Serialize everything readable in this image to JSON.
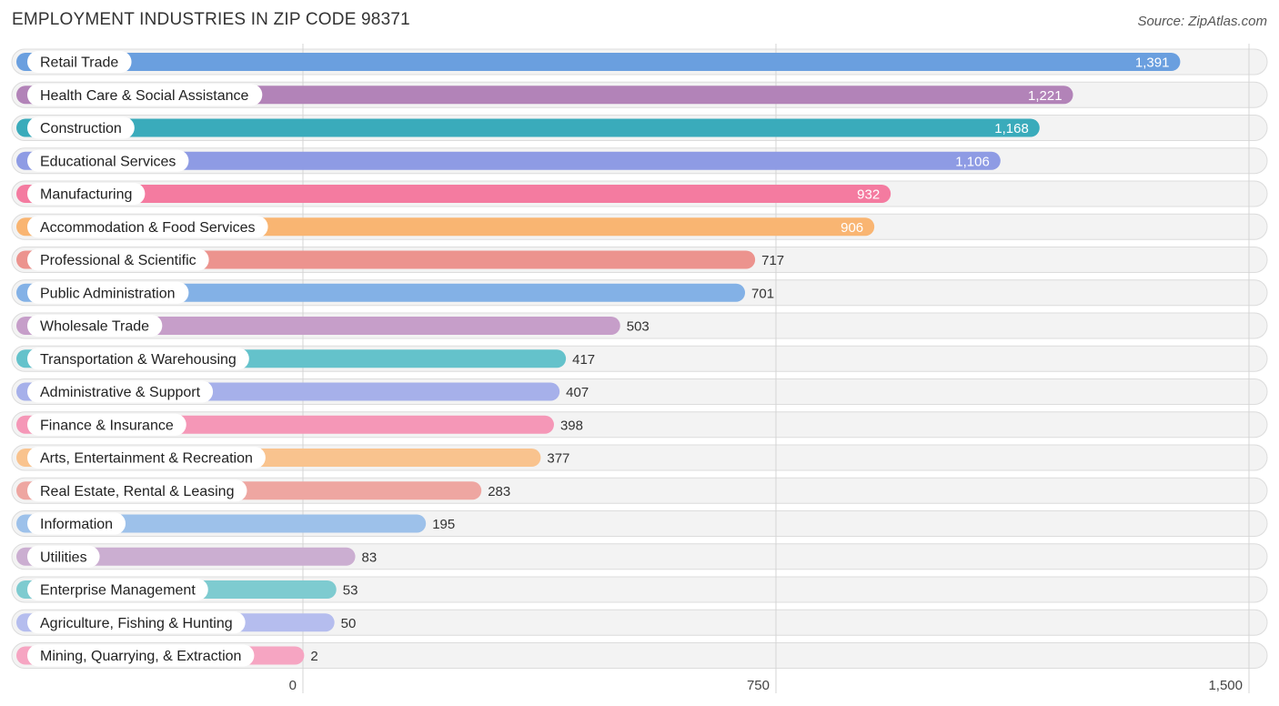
{
  "chart_data": {
    "type": "bar",
    "orientation": "horizontal",
    "title": "EMPLOYMENT INDUSTRIES IN ZIP CODE 98371",
    "source": "Source: ZipAtlas.com",
    "xlabel": "",
    "ylabel": "",
    "xlim": [
      0,
      1500
    ],
    "ticks": [
      0,
      750,
      1500
    ],
    "tick_labels": [
      "0",
      "750",
      "1,500"
    ],
    "categories": [
      "Retail Trade",
      "Health Care & Social Assistance",
      "Construction",
      "Educational Services",
      "Manufacturing",
      "Accommodation & Food Services",
      "Professional & Scientific",
      "Public Administration",
      "Wholesale Trade",
      "Transportation & Warehousing",
      "Administrative & Support",
      "Finance & Insurance",
      "Arts, Entertainment & Recreation",
      "Real Estate, Rental & Leasing",
      "Information",
      "Utilities",
      "Enterprise Management",
      "Agriculture, Fishing & Hunting",
      "Mining, Quarrying, & Extraction"
    ],
    "values": [
      1391,
      1221,
      1168,
      1106,
      932,
      906,
      717,
      701,
      503,
      417,
      407,
      398,
      377,
      283,
      195,
      83,
      53,
      50,
      2
    ],
    "value_labels": [
      "1,391",
      "1,221",
      "1,168",
      "1,106",
      "932",
      "906",
      "717",
      "701",
      "503",
      "417",
      "407",
      "398",
      "377",
      "283",
      "195",
      "83",
      "53",
      "50",
      "2"
    ],
    "colors": [
      "#6a9fdf",
      "#b283b8",
      "#3aabbb",
      "#8e9be4",
      "#f47ba0",
      "#f9b572",
      "#ec938e",
      "#83b1e6",
      "#c69ec9",
      "#64c2cb",
      "#a6b0ea",
      "#f597b7",
      "#f9c38e",
      "#eea6a1",
      "#9dc1ea",
      "#cbaed1",
      "#7ecbd0",
      "#b5bdee",
      "#f6a5c2"
    ]
  }
}
